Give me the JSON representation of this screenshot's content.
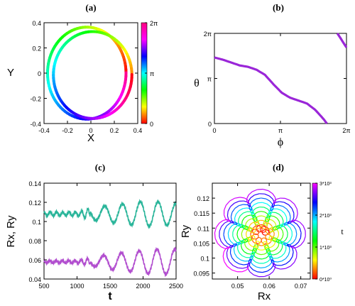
{
  "chart_data": [
    {
      "panel_label": "(a)",
      "type": "scatter",
      "xlabel": "X",
      "ylabel": "Y",
      "xticks": [
        "-0.4",
        "-0.2",
        "0",
        "0.2",
        "0.4"
      ],
      "yticks": [
        "-0.4",
        "-0.2",
        "0",
        "0.2",
        "0.4"
      ],
      "xlim": [
        -0.4,
        0.4
      ],
      "ylim": [
        -0.4,
        0.4
      ],
      "colorbar_ticks": [
        "2π",
        "π",
        "0"
      ],
      "colorbar_range": [
        0,
        6.2832
      ],
      "rings": [
        {
          "cx": -0.035,
          "cy": 0.0,
          "rx": 0.335,
          "ry": 0.365
        },
        {
          "cx": 0.015,
          "cy": -0.015,
          "rx": 0.335,
          "ry": 0.345
        }
      ]
    },
    {
      "panel_label": "(b)",
      "type": "line",
      "xlabel": "ϕ",
      "ylabel": "θ",
      "xticks": [
        "0",
        "π",
        "2π"
      ],
      "yticks": [
        "2π",
        "π",
        "0"
      ],
      "xlim": [
        0,
        6.2832
      ],
      "ylim": [
        0,
        6.2832
      ],
      "color": "#9a26d8",
      "branch_1": {
        "x": [
          0.0,
          0.4,
          0.8,
          1.2,
          1.6,
          2.0,
          2.4,
          2.8,
          3.2,
          3.6,
          4.0,
          4.4,
          4.8,
          5.2,
          5.35
        ],
        "y": [
          4.6,
          4.45,
          4.25,
          4.05,
          3.95,
          3.75,
          3.4,
          2.75,
          2.15,
          1.8,
          1.6,
          1.4,
          0.95,
          0.3,
          0.0
        ]
      },
      "branch_2": {
        "x": [
          5.85,
          6.0,
          6.15,
          6.2832
        ],
        "y": [
          6.2832,
          5.95,
          5.6,
          5.3
        ]
      }
    },
    {
      "panel_label": "(c)",
      "type": "line",
      "xlabel": "t",
      "ylabel": "Rx, Ry",
      "xticks": [
        "500",
        "1000",
        "1500",
        "2000",
        "2500"
      ],
      "yticks": [
        "0.14",
        "0.12",
        "0.1",
        "0.08",
        "0.06",
        "0.04"
      ],
      "xlim": [
        500,
        2500
      ],
      "ylim": [
        0.04,
        0.14
      ],
      "series": [
        {
          "color": "#2ab59a",
          "base": 0.108,
          "envelope_t": [
            500,
            1000,
            1200,
            1500,
            2000,
            2200,
            2500
          ],
          "envelope_a": [
            0.002,
            0.002,
            0.006,
            0.009,
            0.013,
            0.013,
            0.011
          ]
        },
        {
          "color": "#b24fcf",
          "base": 0.058,
          "envelope_t": [
            500,
            1000,
            1200,
            1500,
            2000,
            2200,
            2500
          ],
          "envelope_a": [
            0.001,
            0.0015,
            0.004,
            0.008,
            0.012,
            0.013,
            0.013
          ]
        }
      ]
    },
    {
      "panel_label": "(d)",
      "type": "line",
      "xlabel": "Rx",
      "ylabel": "Ry",
      "xticks": [
        "0.05",
        "0.06",
        "0.07"
      ],
      "yticks": [
        "0.12",
        "0.115",
        "0.11",
        "0.105",
        "0.1",
        "0.095"
      ],
      "xlim": [
        0.042,
        0.073
      ],
      "ylim": [
        0.093,
        0.125
      ],
      "center": [
        0.0575,
        0.108
      ],
      "colorbar_label": "t",
      "colorbar_ticks": [
        "3*10³",
        "2*10³",
        "1*10³",
        "0*10⁰"
      ],
      "t_range": [
        0,
        3000
      ]
    }
  ]
}
